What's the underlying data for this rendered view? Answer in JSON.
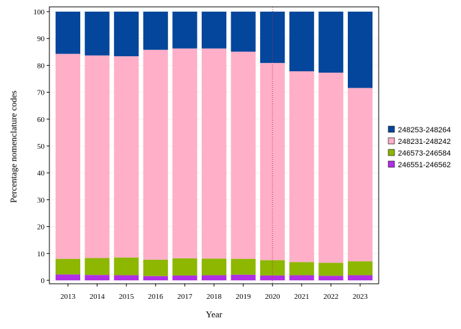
{
  "chart_data": {
    "type": "bar",
    "stacked": true,
    "title": "",
    "xlabel": "Year",
    "ylabel": "Percentage nomenclature codes",
    "ylim": [
      0,
      100
    ],
    "yticks": [
      0,
      10,
      20,
      30,
      40,
      50,
      60,
      70,
      80,
      90,
      100
    ],
    "categories": [
      "2013",
      "2014",
      "2015",
      "2016",
      "2017",
      "2018",
      "2019",
      "2020",
      "2021",
      "2022",
      "2023"
    ],
    "reference_line": {
      "x": "2020",
      "style": "dotted",
      "color": "#b03060"
    },
    "legend_position": "right",
    "series": [
      {
        "name": "246551-246562",
        "color": "#b22ee6",
        "values": [
          2.2,
          2.0,
          1.9,
          1.6,
          1.8,
          1.9,
          2.1,
          1.8,
          1.9,
          1.7,
          1.9
        ]
      },
      {
        "name": "246573-246584",
        "color": "#8db700",
        "values": [
          5.8,
          6.3,
          6.6,
          6.1,
          6.4,
          6.2,
          5.9,
          5.7,
          4.9,
          4.8,
          5.2
        ]
      },
      {
        "name": "248231-248242",
        "color": "#ffafc8",
        "values": [
          76.3,
          75.4,
          74.9,
          78.1,
          78.1,
          78.2,
          77.1,
          73.4,
          71.0,
          70.8,
          64.5
        ]
      },
      {
        "name": "248253-248264",
        "color": "#03469b",
        "values": [
          15.7,
          16.3,
          16.6,
          14.2,
          13.7,
          13.7,
          14.9,
          19.1,
          22.2,
          22.7,
          28.4
        ]
      }
    ],
    "legend_order": [
      "248253-248264",
      "248231-248242",
      "246573-246584",
      "246551-246562"
    ]
  }
}
